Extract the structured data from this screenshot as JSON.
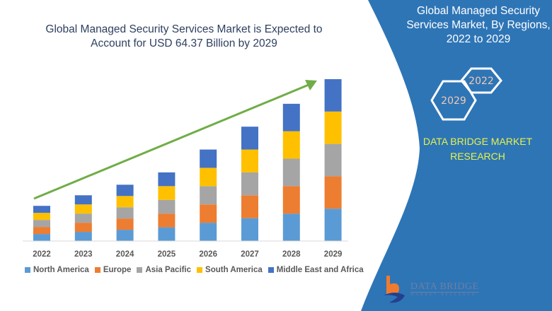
{
  "header": {
    "title": "Global Managed Security Services Market is Expected to Account for USD 64.37 Billion by 2029"
  },
  "side_panel": {
    "title": "Global Managed Security Services Market,  By Regions, 2022 to 2029",
    "hex_labels": [
      "2022",
      "2029"
    ],
    "brand_text": "DATA BRIDGE MARKET RESEARCH",
    "logo_main": "DATA BRIDGE",
    "logo_sub": "MARKET RESEARCH",
    "panel_color": "#2e75b6",
    "brand_color": "#e6f34a"
  },
  "chart_data": {
    "type": "bar",
    "stacked": true,
    "title": "Global Managed Security Services Market is Expected to Account for USD 64.37 Billion by 2029",
    "xlabel": "",
    "ylabel": "",
    "categories": [
      "2022",
      "2023",
      "2024",
      "2025",
      "2026",
      "2027",
      "2028",
      "2029"
    ],
    "series": [
      {
        "name": "North America",
        "color": "#5b9bd5",
        "values": [
          10,
          13,
          16,
          19.5,
          26,
          32.5,
          39,
          46
        ]
      },
      {
        "name": "Europe",
        "color": "#ed7d31",
        "values": [
          10,
          13,
          16,
          19.5,
          26,
          32.5,
          39,
          46
        ]
      },
      {
        "name": "Asia Pacific",
        "color": "#a5a5a5",
        "values": [
          10,
          13,
          16,
          19.5,
          26,
          32.5,
          39,
          46
        ]
      },
      {
        "name": "South America",
        "color": "#ffc000",
        "values": [
          10,
          13,
          16,
          19.5,
          26,
          32.5,
          39,
          46
        ]
      },
      {
        "name": "Middle East and Africa",
        "color": "#4472c4",
        "values": [
          10,
          13,
          16,
          19.5,
          26,
          32.5,
          39,
          46
        ]
      }
    ],
    "ylim": [
      0,
      230
    ],
    "grid": false,
    "y_axis_visible": false,
    "legend_position": "bottom",
    "annotations": [
      {
        "type": "trend-arrow",
        "color": "#70ad47",
        "direction": "up",
        "from_category": "2022",
        "to_category": "2029"
      }
    ]
  }
}
